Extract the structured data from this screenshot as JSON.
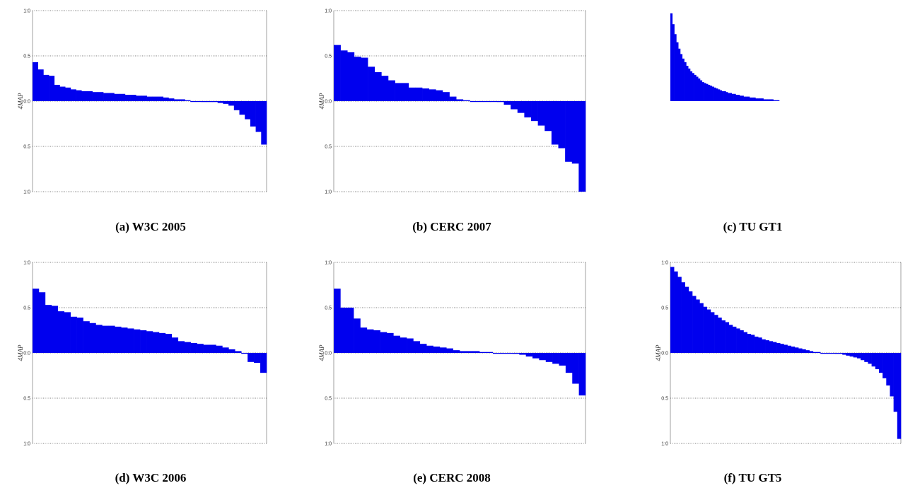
{
  "figure": {
    "colors": {
      "bar": "#0000ee",
      "axis": "#888888",
      "grid": "#555555",
      "text": "#333333"
    }
  },
  "chart_data": [
    {
      "type": "bar",
      "caption": "(a) W3C 2005",
      "ylabel": "4MAP",
      "ylim": [
        -1,
        1
      ],
      "ytick_labels": [
        "1:0",
        "0.5",
        "0:0",
        "0.5",
        "1:0"
      ],
      "grid": true,
      "values": [
        0.43,
        0.35,
        0.29,
        0.28,
        0.18,
        0.16,
        0.15,
        0.13,
        0.12,
        0.11,
        0.11,
        0.1,
        0.1,
        0.09,
        0.09,
        0.08,
        0.08,
        0.07,
        0.07,
        0.06,
        0.06,
        0.05,
        0.05,
        0.05,
        0.04,
        0.03,
        0.02,
        0.02,
        0.01,
        0.0,
        0.0,
        -0.01,
        -0.01,
        -0.01,
        -0.02,
        -0.03,
        -0.05,
        -0.1,
        -0.15,
        -0.2,
        -0.28,
        -0.34,
        -0.48
      ]
    },
    {
      "type": "bar",
      "caption": "(b) CERC 2007",
      "ylabel": "4MAP",
      "ylim": [
        -1,
        1
      ],
      "ytick_labels": [
        "1:0",
        "0.5",
        "0:0",
        "0.5",
        "1:0"
      ],
      "grid": true,
      "values": [
        0.62,
        0.56,
        0.54,
        0.49,
        0.48,
        0.38,
        0.32,
        0.28,
        0.23,
        0.2,
        0.2,
        0.15,
        0.15,
        0.14,
        0.13,
        0.12,
        0.1,
        0.05,
        0.02,
        0.01,
        0.0,
        0.0,
        0.0,
        0.0,
        -0.01,
        -0.04,
        -0.09,
        -0.13,
        -0.18,
        -0.22,
        -0.27,
        -0.33,
        -0.48,
        -0.52,
        -0.67,
        -0.69,
        -1.0
      ]
    },
    {
      "type": "bar",
      "caption": "(c) TU GT1",
      "ylabel": "",
      "ylim": [
        -1,
        1
      ],
      "ytick_labels": [],
      "grid": false,
      "values": [
        0.97,
        0.85,
        0.74,
        0.65,
        0.58,
        0.52,
        0.47,
        0.43,
        0.39,
        0.36,
        0.33,
        0.31,
        0.29,
        0.27,
        0.25,
        0.23,
        0.21,
        0.2,
        0.19,
        0.18,
        0.17,
        0.16,
        0.15,
        0.14,
        0.13,
        0.12,
        0.11,
        0.11,
        0.1,
        0.09,
        0.09,
        0.08,
        0.08,
        0.07,
        0.07,
        0.06,
        0.06,
        0.05,
        0.05,
        0.05,
        0.04,
        0.04,
        0.04,
        0.03,
        0.03,
        0.03,
        0.03,
        0.02,
        0.02,
        0.02,
        0.02,
        0.02,
        0.01,
        0.01,
        0.01
      ]
    },
    {
      "type": "bar",
      "caption": "(d) W3C 2006",
      "ylabel": "4MAP",
      "ylim": [
        -1,
        1
      ],
      "ytick_labels": [
        "1:0",
        "0.5",
        "0:0",
        "0.5",
        "1:0"
      ],
      "grid": true,
      "values": [
        0.71,
        0.67,
        0.53,
        0.52,
        0.46,
        0.45,
        0.4,
        0.39,
        0.35,
        0.33,
        0.31,
        0.3,
        0.3,
        0.29,
        0.28,
        0.27,
        0.26,
        0.25,
        0.24,
        0.23,
        0.22,
        0.21,
        0.17,
        0.13,
        0.12,
        0.11,
        0.1,
        0.09,
        0.09,
        0.08,
        0.06,
        0.04,
        0.02,
        0.0,
        -0.1,
        -0.11,
        -0.22
      ]
    },
    {
      "type": "bar",
      "caption": "(e) CERC 2008",
      "ylabel": "4MAP",
      "ylim": [
        -1,
        1
      ],
      "ytick_labels": [
        "1:0",
        "0.5",
        "0:0",
        "0.5",
        "1:0"
      ],
      "grid": true,
      "values": [
        0.71,
        0.5,
        0.5,
        0.38,
        0.28,
        0.26,
        0.25,
        0.23,
        0.22,
        0.19,
        0.17,
        0.16,
        0.13,
        0.1,
        0.08,
        0.07,
        0.06,
        0.05,
        0.03,
        0.02,
        0.02,
        0.02,
        0.01,
        0.01,
        0.0,
        0.0,
        0.0,
        -0.01,
        -0.02,
        -0.04,
        -0.06,
        -0.08,
        -0.1,
        -0.12,
        -0.14,
        -0.22,
        -0.34,
        -0.47
      ]
    },
    {
      "type": "bar",
      "caption": "(f) TU GT5",
      "ylabel": "4MAP",
      "ylim": [
        -1,
        1
      ],
      "ytick_labels": [
        "1:0",
        "0.5",
        "0:0",
        "0.5",
        "1:0"
      ],
      "grid": true,
      "values": [
        0.95,
        0.9,
        0.84,
        0.78,
        0.73,
        0.68,
        0.63,
        0.59,
        0.55,
        0.51,
        0.48,
        0.45,
        0.42,
        0.39,
        0.36,
        0.34,
        0.31,
        0.29,
        0.27,
        0.25,
        0.23,
        0.21,
        0.2,
        0.18,
        0.17,
        0.15,
        0.14,
        0.13,
        0.12,
        0.11,
        0.1,
        0.09,
        0.08,
        0.07,
        0.06,
        0.05,
        0.04,
        0.03,
        0.02,
        0.01,
        0.01,
        0.0,
        0.0,
        0.0,
        0.0,
        -0.01,
        -0.01,
        -0.02,
        -0.03,
        -0.04,
        -0.05,
        -0.06,
        -0.08,
        -0.1,
        -0.12,
        -0.15,
        -0.18,
        -0.22,
        -0.28,
        -0.36,
        -0.48,
        -0.65,
        -0.95
      ]
    }
  ]
}
